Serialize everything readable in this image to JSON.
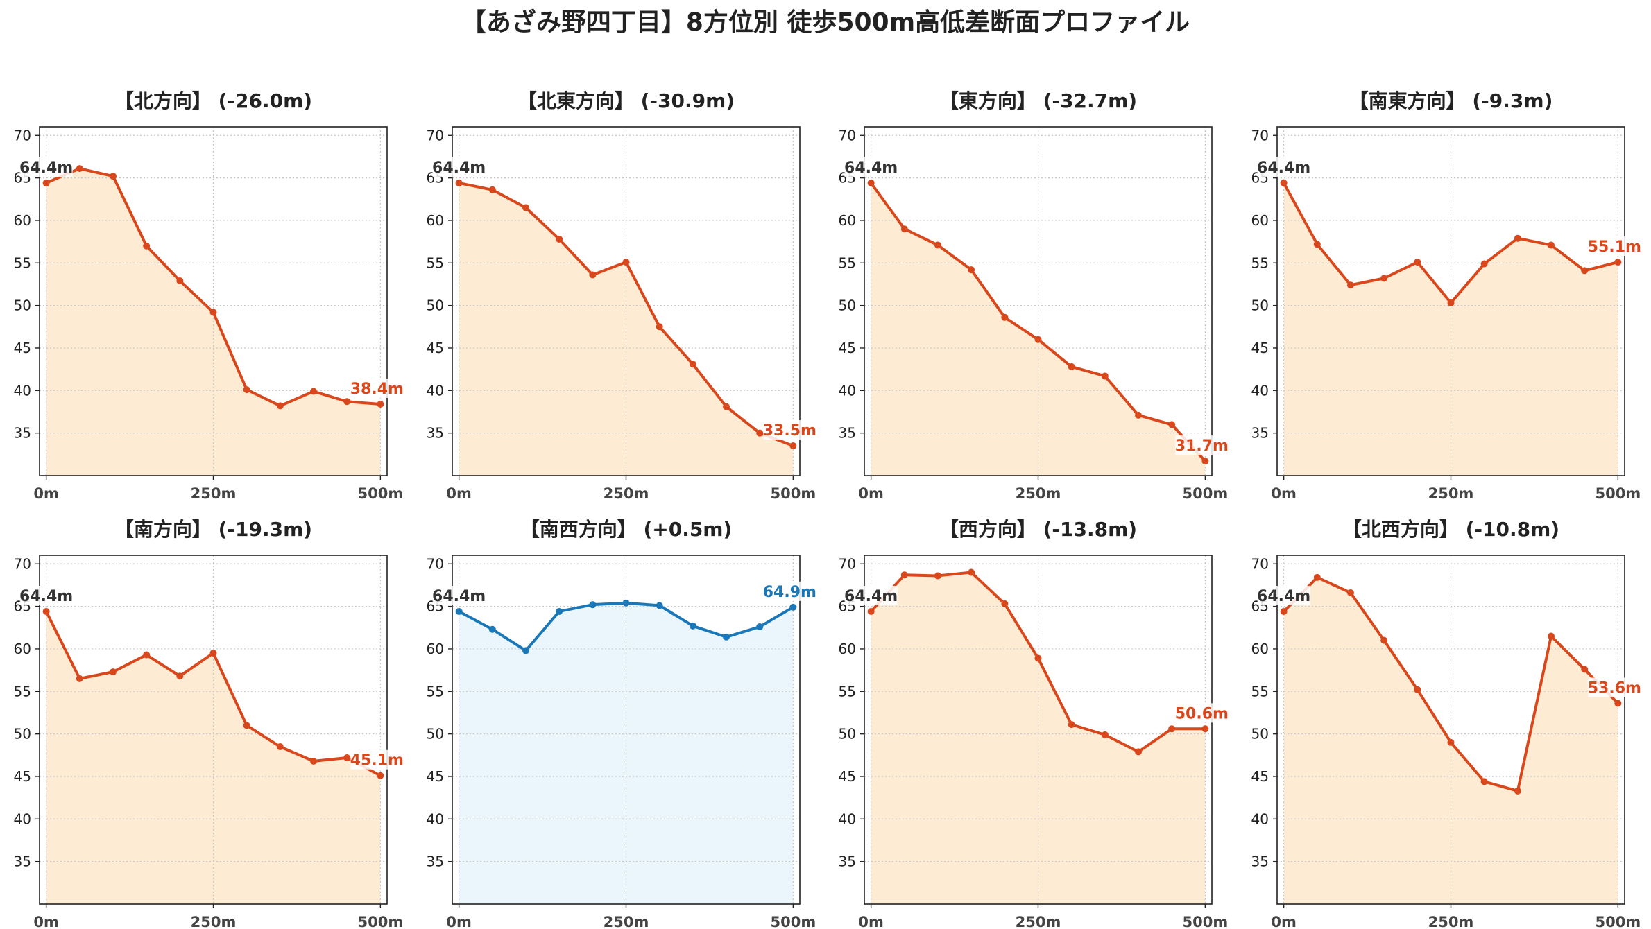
{
  "title": "【あざみ野四丁目】8方位別 徒歩500m高低差断面プロファイル",
  "colors": {
    "down_line": "#d9481c",
    "down_fill": "#fdebd3",
    "up_line": "#1a78b8",
    "up_fill": "#eaf6fb",
    "grid": "#c8c8c8",
    "axis": "#222222",
    "start_label": "#333333"
  },
  "chart_data": [
    {
      "type": "area",
      "title": "【北方向】 (-26.0m)",
      "x": [
        0,
        50,
        100,
        150,
        200,
        250,
        300,
        350,
        400,
        450,
        500
      ],
      "y": [
        64.4,
        66.1,
        65.2,
        57.0,
        52.9,
        49.2,
        40.1,
        38.2,
        39.9,
        38.7,
        38.4
      ],
      "start_label": "64.4m",
      "end_label": "38.4m",
      "trend": "down",
      "xticks": [
        "0m",
        "250m",
        "500m"
      ],
      "yticks": [
        35,
        40,
        45,
        50,
        55,
        60,
        65,
        70
      ],
      "ylim": [
        30,
        71
      ],
      "xlim": [
        -10,
        510
      ],
      "grid": true
    },
    {
      "type": "area",
      "title": "【北東方向】 (-30.9m)",
      "x": [
        0,
        50,
        100,
        150,
        200,
        250,
        300,
        350,
        400,
        450,
        500
      ],
      "y": [
        64.4,
        63.6,
        61.5,
        57.8,
        53.6,
        55.1,
        47.5,
        43.1,
        38.1,
        35.0,
        33.5
      ],
      "start_label": "64.4m",
      "end_label": "33.5m",
      "trend": "down",
      "xticks": [
        "0m",
        "250m",
        "500m"
      ],
      "yticks": [
        35,
        40,
        45,
        50,
        55,
        60,
        65,
        70
      ],
      "ylim": [
        30,
        71
      ],
      "xlim": [
        -10,
        510
      ],
      "grid": true
    },
    {
      "type": "area",
      "title": "【東方向】 (-32.7m)",
      "x": [
        0,
        50,
        100,
        150,
        200,
        250,
        300,
        350,
        400,
        450,
        500
      ],
      "y": [
        64.4,
        59.0,
        57.1,
        54.2,
        48.6,
        46.0,
        42.8,
        41.7,
        37.1,
        36.0,
        31.7
      ],
      "start_label": "64.4m",
      "end_label": "31.7m",
      "trend": "down",
      "xticks": [
        "0m",
        "250m",
        "500m"
      ],
      "yticks": [
        35,
        40,
        45,
        50,
        55,
        60,
        65,
        70
      ],
      "ylim": [
        30,
        71
      ],
      "xlim": [
        -10,
        510
      ],
      "grid": true
    },
    {
      "type": "area",
      "title": "【南東方向】 (-9.3m)",
      "x": [
        0,
        50,
        100,
        150,
        200,
        250,
        300,
        350,
        400,
        450,
        500
      ],
      "y": [
        64.4,
        57.2,
        52.4,
        53.2,
        55.1,
        50.3,
        54.9,
        57.9,
        57.1,
        54.1,
        55.1
      ],
      "start_label": "64.4m",
      "end_label": "55.1m",
      "trend": "down",
      "xticks": [
        "0m",
        "250m",
        "500m"
      ],
      "yticks": [
        35,
        40,
        45,
        50,
        55,
        60,
        65,
        70
      ],
      "ylim": [
        30,
        71
      ],
      "xlim": [
        -10,
        510
      ],
      "grid": true
    },
    {
      "type": "area",
      "title": "【南方向】 (-19.3m)",
      "x": [
        0,
        50,
        100,
        150,
        200,
        250,
        300,
        350,
        400,
        450,
        500
      ],
      "y": [
        64.4,
        56.5,
        57.3,
        59.3,
        56.8,
        59.5,
        51.0,
        48.5,
        46.8,
        47.2,
        45.1
      ],
      "start_label": "64.4m",
      "end_label": "45.1m",
      "trend": "down",
      "xticks": [
        "0m",
        "250m",
        "500m"
      ],
      "yticks": [
        35,
        40,
        45,
        50,
        55,
        60,
        65,
        70
      ],
      "ylim": [
        30,
        71
      ],
      "xlim": [
        -10,
        510
      ],
      "grid": true
    },
    {
      "type": "area",
      "title": "【南西方向】 (+0.5m)",
      "x": [
        0,
        50,
        100,
        150,
        200,
        250,
        300,
        350,
        400,
        450,
        500
      ],
      "y": [
        64.4,
        62.3,
        59.8,
        64.4,
        65.2,
        65.4,
        65.1,
        62.7,
        61.4,
        62.6,
        64.9
      ],
      "start_label": "64.4m",
      "end_label": "64.9m",
      "trend": "up",
      "xticks": [
        "0m",
        "250m",
        "500m"
      ],
      "yticks": [
        35,
        40,
        45,
        50,
        55,
        60,
        65,
        70
      ],
      "ylim": [
        30,
        71
      ],
      "xlim": [
        -10,
        510
      ],
      "grid": true
    },
    {
      "type": "area",
      "title": "【西方向】 (-13.8m)",
      "x": [
        0,
        50,
        100,
        150,
        200,
        250,
        300,
        350,
        400,
        450,
        500
      ],
      "y": [
        64.4,
        68.7,
        68.6,
        69.0,
        65.3,
        58.9,
        51.1,
        49.9,
        47.9,
        50.6,
        50.6
      ],
      "start_label": "64.4m",
      "end_label": "50.6m",
      "trend": "down",
      "xticks": [
        "0m",
        "250m",
        "500m"
      ],
      "yticks": [
        35,
        40,
        45,
        50,
        55,
        60,
        65,
        70
      ],
      "ylim": [
        30,
        71
      ],
      "xlim": [
        -10,
        510
      ],
      "grid": true
    },
    {
      "type": "area",
      "title": "【北西方向】 (-10.8m)",
      "x": [
        0,
        50,
        100,
        150,
        200,
        250,
        300,
        350,
        400,
        450,
        500
      ],
      "y": [
        64.4,
        68.4,
        66.6,
        61.0,
        55.2,
        49.0,
        44.4,
        43.3,
        61.5,
        57.6,
        53.6
      ],
      "start_label": "64.4m",
      "end_label": "53.6m",
      "trend": "down",
      "xticks": [
        "0m",
        "250m",
        "500m"
      ],
      "yticks": [
        35,
        40,
        45,
        50,
        55,
        60,
        65,
        70
      ],
      "ylim": [
        30,
        71
      ],
      "xlim": [
        -10,
        510
      ],
      "grid": true
    }
  ]
}
